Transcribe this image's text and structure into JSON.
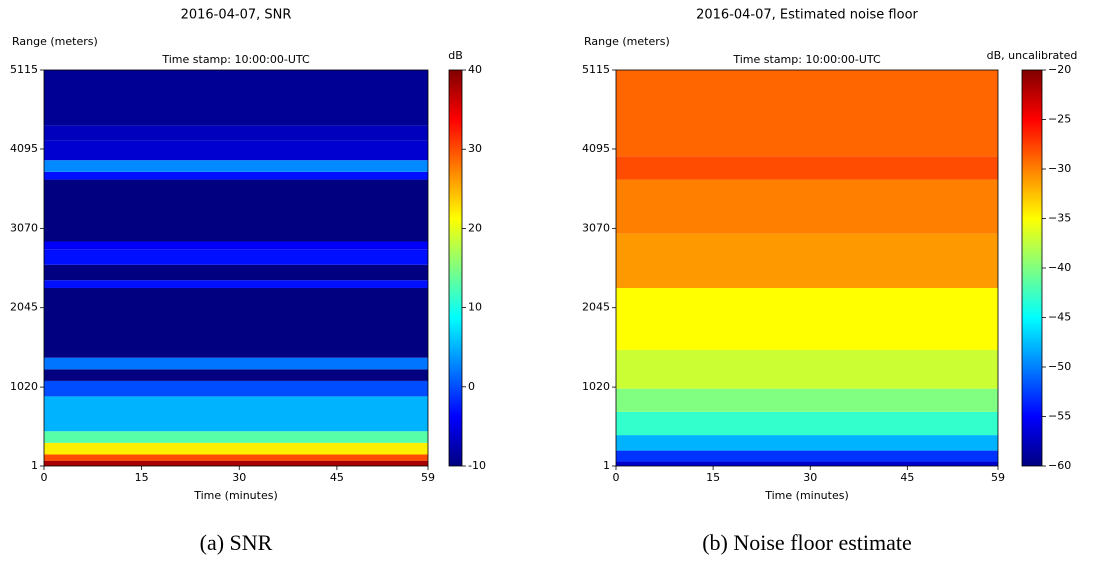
{
  "chart_data": [
    {
      "type": "heatmap",
      "title": "2016-04-07, SNR",
      "subtitle": "Time stamp: 10:00:00-UTC",
      "ylabel": "Range (meters)",
      "xlabel": "Time (minutes)",
      "colorbar_label": "dB",
      "caption": "(a) SNR",
      "colormap": "jet",
      "xlim": [
        0,
        59
      ],
      "xticks": [
        0,
        15,
        30,
        45,
        59
      ],
      "ylim": [
        1,
        5115
      ],
      "yticks": [
        1,
        1020,
        2045,
        3070,
        4095,
        5115
      ],
      "clim": [
        -10,
        40
      ],
      "cticks": [
        -10,
        0,
        10,
        20,
        30,
        40
      ],
      "y_bins": [
        1,
        70,
        150,
        300,
        450,
        900,
        1100,
        1250,
        1400,
        2300,
        2400,
        2600,
        2800,
        2900,
        3700,
        3800,
        3950,
        4200,
        4400,
        5115
      ],
      "values": [
        38,
        30,
        22,
        13,
        5,
        0,
        -10,
        2,
        -10,
        -3,
        -10,
        -3,
        -4,
        -10,
        -3,
        3,
        -6,
        -7,
        -9
      ]
    },
    {
      "type": "heatmap",
      "title": "2016-04-07, Estimated noise floor",
      "subtitle": "Time stamp: 10:00:00-UTC",
      "ylabel": "Range (meters)",
      "xlabel": "Time (minutes)",
      "colorbar_label": "dB, uncalibrated",
      "caption": "(b) Noise floor estimate",
      "colormap": "jet",
      "xlim": [
        0,
        59
      ],
      "xticks": [
        0,
        15,
        30,
        45,
        59
      ],
      "ylim": [
        1,
        5115
      ],
      "yticks": [
        1,
        1020,
        2045,
        3070,
        4095,
        5115
      ],
      "clim": [
        -60,
        -20
      ],
      "cticks": [
        {
          "value": -60,
          "label": "−60"
        },
        {
          "value": -55,
          "label": "−55"
        },
        {
          "value": -50,
          "label": "−50"
        },
        {
          "value": -45,
          "label": "−45"
        },
        {
          "value": -40,
          "label": "−40"
        },
        {
          "value": -35,
          "label": "−35"
        },
        {
          "value": -30,
          "label": "−30"
        },
        {
          "value": -25,
          "label": "−25"
        },
        {
          "value": -20,
          "label": "−20"
        }
      ],
      "y_bins": [
        1,
        60,
        200,
        400,
        700,
        1000,
        1500,
        2300,
        3000,
        3700,
        4000,
        5115
      ],
      "values": [
        -57,
        -53,
        -48,
        -43,
        -40,
        -37,
        -35,
        -31,
        -30,
        -28,
        -29
      ]
    }
  ]
}
